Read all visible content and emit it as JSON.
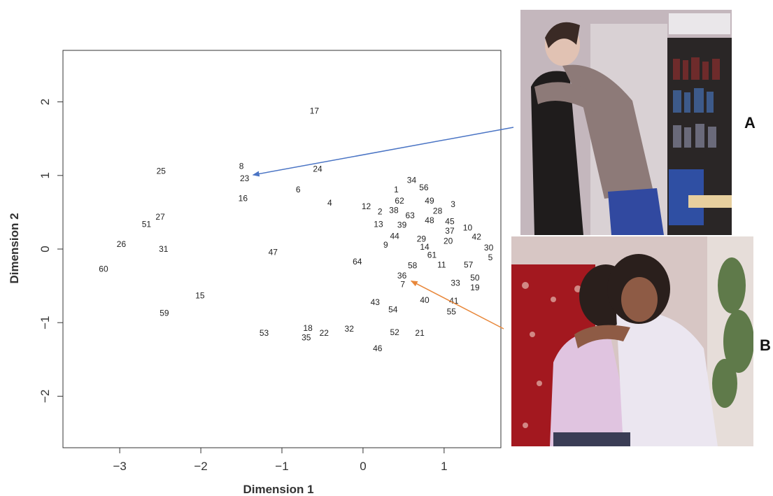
{
  "chart_data": {
    "type": "scatter",
    "xlabel": "Dimension 1",
    "ylabel": "Dimension 2",
    "xlim": [
      -3.7,
      1.7
    ],
    "ylim": [
      -2.7,
      2.7
    ],
    "xticks": [
      -3,
      -2,
      -1,
      0,
      1
    ],
    "yticks": [
      -2,
      -1,
      0,
      1,
      2
    ],
    "xtick_labels": [
      "−3",
      "−2",
      "−1",
      "0",
      "1"
    ],
    "ytick_labels": [
      "−2",
      "−1",
      "0",
      "1",
      "2"
    ],
    "grid": false,
    "points": [
      {
        "label": "17",
        "x": -0.6,
        "y": 1.87
      },
      {
        "label": "25",
        "x": -2.49,
        "y": 1.05
      },
      {
        "label": "8",
        "x": -1.5,
        "y": 1.12
      },
      {
        "label": "23",
        "x": -1.46,
        "y": 0.95
      },
      {
        "label": "24",
        "x": -0.56,
        "y": 1.08
      },
      {
        "label": "16",
        "x": -1.48,
        "y": 0.68
      },
      {
        "label": "6",
        "x": -0.8,
        "y": 0.8
      },
      {
        "label": "4",
        "x": -0.41,
        "y": 0.62
      },
      {
        "label": "34",
        "x": 0.6,
        "y": 0.93
      },
      {
        "label": "56",
        "x": 0.75,
        "y": 0.83
      },
      {
        "label": "1",
        "x": 0.41,
        "y": 0.8
      },
      {
        "label": "62",
        "x": 0.45,
        "y": 0.65
      },
      {
        "label": "49",
        "x": 0.82,
        "y": 0.65
      },
      {
        "label": "3",
        "x": 1.11,
        "y": 0.6
      },
      {
        "label": "12",
        "x": 0.04,
        "y": 0.57
      },
      {
        "label": "2",
        "x": 0.21,
        "y": 0.5
      },
      {
        "label": "38",
        "x": 0.38,
        "y": 0.52
      },
      {
        "label": "28",
        "x": 0.92,
        "y": 0.51
      },
      {
        "label": "63",
        "x": 0.58,
        "y": 0.45
      },
      {
        "label": "48",
        "x": 0.82,
        "y": 0.38
      },
      {
        "label": "45",
        "x": 1.07,
        "y": 0.37
      },
      {
        "label": "13",
        "x": 0.19,
        "y": 0.33
      },
      {
        "label": "39",
        "x": 0.48,
        "y": 0.32
      },
      {
        "label": "10",
        "x": 1.29,
        "y": 0.28
      },
      {
        "label": "37",
        "x": 1.07,
        "y": 0.24
      },
      {
        "label": "42",
        "x": 1.4,
        "y": 0.16
      },
      {
        "label": "44",
        "x": 0.39,
        "y": 0.17
      },
      {
        "label": "29",
        "x": 0.72,
        "y": 0.13
      },
      {
        "label": "20",
        "x": 1.05,
        "y": 0.1
      },
      {
        "label": "9",
        "x": 0.28,
        "y": 0.05
      },
      {
        "label": "14",
        "x": 0.76,
        "y": 0.02
      },
      {
        "label": "30",
        "x": 1.55,
        "y": 0.01
      },
      {
        "label": "61",
        "x": 0.85,
        "y": -0.09
      },
      {
        "label": "5",
        "x": 1.57,
        "y": -0.12
      },
      {
        "label": "11",
        "x": 0.97,
        "y": -0.22
      },
      {
        "label": "57",
        "x": 1.3,
        "y": -0.22
      },
      {
        "label": "58",
        "x": 0.61,
        "y": -0.23
      },
      {
        "label": "64",
        "x": -0.07,
        "y": -0.18
      },
      {
        "label": "36",
        "x": 0.48,
        "y": -0.37
      },
      {
        "label": "7",
        "x": 0.49,
        "y": -0.49
      },
      {
        "label": "50",
        "x": 1.38,
        "y": -0.4
      },
      {
        "label": "33",
        "x": 1.14,
        "y": -0.47
      },
      {
        "label": "19",
        "x": 1.38,
        "y": -0.53
      },
      {
        "label": "40",
        "x": 0.76,
        "y": -0.7
      },
      {
        "label": "41",
        "x": 1.12,
        "y": -0.71
      },
      {
        "label": "43",
        "x": 0.15,
        "y": -0.73
      },
      {
        "label": "54",
        "x": 0.37,
        "y": -0.83
      },
      {
        "label": "55",
        "x": 1.09,
        "y": -0.86
      },
      {
        "label": "32",
        "x": -0.17,
        "y": -1.09
      },
      {
        "label": "18",
        "x": -0.68,
        "y": -1.08
      },
      {
        "label": "35",
        "x": -0.7,
        "y": -1.21
      },
      {
        "label": "22",
        "x": -0.48,
        "y": -1.15
      },
      {
        "label": "52",
        "x": 0.39,
        "y": -1.14
      },
      {
        "label": "21",
        "x": 0.7,
        "y": -1.15
      },
      {
        "label": "53",
        "x": -1.22,
        "y": -1.15
      },
      {
        "label": "46",
        "x": 0.18,
        "y": -1.36
      },
      {
        "label": "51",
        "x": -2.67,
        "y": 0.33
      },
      {
        "label": "27",
        "x": -2.5,
        "y": 0.43
      },
      {
        "label": "26",
        "x": -2.98,
        "y": 0.06
      },
      {
        "label": "31",
        "x": -2.46,
        "y": -0.01
      },
      {
        "label": "47",
        "x": -1.11,
        "y": -0.05
      },
      {
        "label": "60",
        "x": -3.2,
        "y": -0.28
      },
      {
        "label": "15",
        "x": -2.01,
        "y": -0.64
      },
      {
        "label": "59",
        "x": -2.45,
        "y": -0.88
      }
    ],
    "annotations": [
      {
        "target_label": "23",
        "panel": "A",
        "color": "#4a74c4"
      },
      {
        "target_label": "7",
        "panel": "B",
        "color": "#e8873a"
      }
    ]
  },
  "panels": [
    {
      "label": "A"
    },
    {
      "label": "B"
    }
  ]
}
